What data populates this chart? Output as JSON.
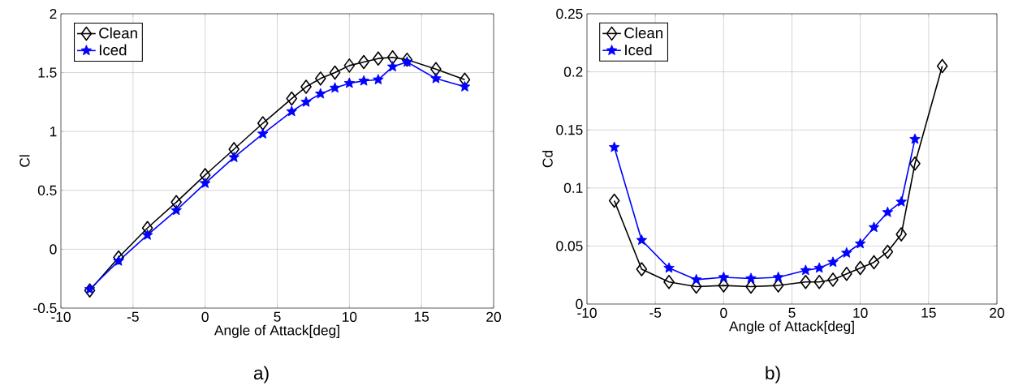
{
  "chart_data": [
    {
      "type": "line",
      "xlabel": "Angle of Attack[deg]",
      "ylabel": "Cl",
      "annotations": [
        "a)"
      ],
      "xlim": [
        -10,
        20
      ],
      "xticks": [
        -10,
        -5,
        0,
        5,
        10,
        15,
        20
      ],
      "ylim": [
        -0.5,
        2
      ],
      "yticks": [
        -0.5,
        0,
        0.5,
        1,
        1.5,
        2
      ],
      "grid": true,
      "legend": "top left",
      "x": [
        -8,
        -6,
        -4,
        -2,
        0,
        2,
        4,
        6,
        7,
        8,
        9,
        10,
        11,
        12,
        13,
        14,
        16,
        18
      ],
      "series": [
        {
          "name": "Clean",
          "color": "#000000",
          "marker": "diamond",
          "values": [
            -0.35,
            -0.07,
            0.18,
            0.4,
            0.63,
            0.85,
            1.07,
            1.28,
            1.38,
            1.45,
            1.5,
            1.56,
            1.59,
            1.62,
            1.63,
            1.61,
            1.53,
            1.44
          ]
        },
        {
          "name": "Iced",
          "color": "#0000ff",
          "marker": "star",
          "values": [
            -0.34,
            -0.1,
            0.12,
            0.33,
            0.56,
            0.78,
            0.98,
            1.17,
            1.25,
            1.32,
            1.37,
            1.41,
            1.43,
            1.44,
            1.55,
            1.59,
            1.45,
            1.38
          ]
        }
      ]
    },
    {
      "type": "line",
      "xlabel": "Angle of Attack[deg]",
      "ylabel": "Cd",
      "annotations": [
        "b)"
      ],
      "xlim": [
        -10,
        20
      ],
      "xticks": [
        -10,
        -5,
        0,
        5,
        10,
        15,
        20
      ],
      "ylim": [
        0,
        0.25
      ],
      "yticks": [
        0,
        0.05,
        0.1,
        0.15,
        0.2,
        0.25
      ],
      "grid": true,
      "legend": "top left",
      "series": [
        {
          "name": "Clean",
          "color": "#000000",
          "marker": "diamond",
          "x": [
            -8,
            -6,
            -4,
            -2,
            0,
            2,
            4,
            6,
            7,
            8,
            9,
            10,
            11,
            12,
            13,
            14,
            16
          ],
          "values": [
            0.089,
            0.03,
            0.019,
            0.015,
            0.016,
            0.015,
            0.016,
            0.019,
            0.019,
            0.021,
            0.026,
            0.031,
            0.036,
            0.045,
            0.06,
            0.121,
            0.205
          ]
        },
        {
          "name": "Iced",
          "color": "#0000ff",
          "marker": "star",
          "x": [
            -8,
            -6,
            -4,
            -2,
            0,
            2,
            4,
            6,
            7,
            8,
            9,
            10,
            11,
            12,
            13,
            14
          ],
          "values": [
            0.135,
            0.055,
            0.031,
            0.021,
            0.023,
            0.022,
            0.023,
            0.029,
            0.031,
            0.036,
            0.044,
            0.052,
            0.066,
            0.079,
            0.088,
            0.142
          ]
        }
      ]
    }
  ]
}
